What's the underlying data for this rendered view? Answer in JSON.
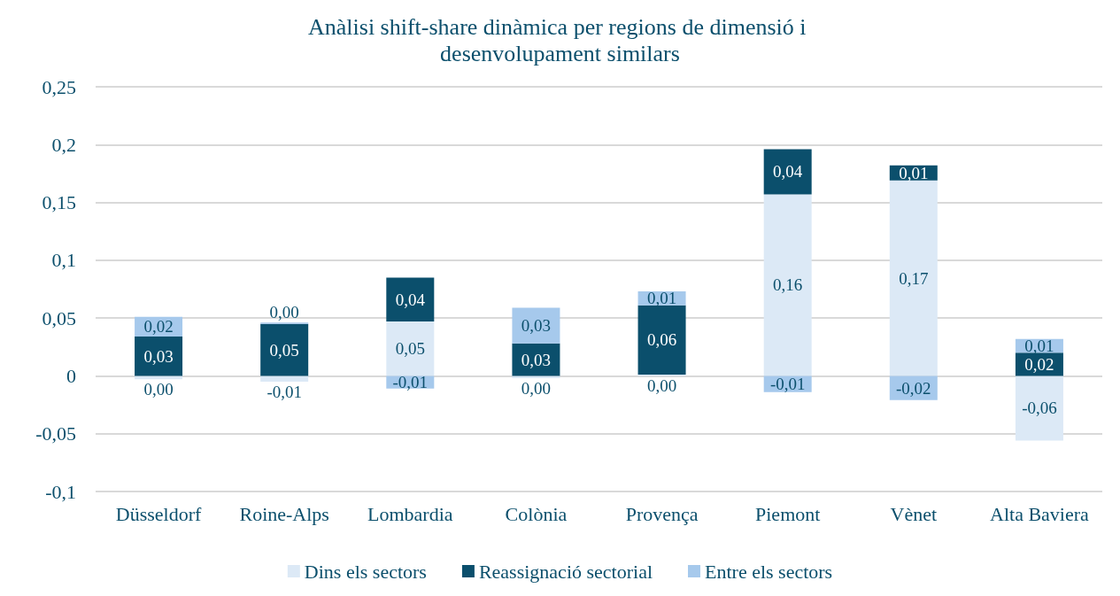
{
  "chart_data": {
    "type": "bar",
    "stacked": true,
    "title": "Anàlisi shift-share dinàmica per regions de dimensió i desenvolupament similars",
    "categories": [
      "Düsseldorf",
      "Roine-Alps",
      "Lombardia",
      "Colònia",
      "Provença",
      "Piemont",
      "Vènet",
      "Alta Baviera"
    ],
    "series": [
      {
        "name": "Dins els sectors",
        "color": "#dce9f6",
        "values": [
          -0.003,
          -0.005,
          0.047,
          -0.002,
          0.001,
          0.157,
          0.169,
          -0.056
        ],
        "value_labels": [
          "0,00",
          "-0,01",
          "0,05",
          "0,00",
          "0,00",
          "0,16",
          "0,17",
          "-0,06"
        ]
      },
      {
        "name": "Reassignació sectorial",
        "color": "#0b4f6c",
        "values": [
          0.034,
          0.045,
          0.038,
          0.028,
          0.06,
          0.039,
          0.013,
          0.02
        ],
        "value_labels": [
          "0,03",
          "0,05",
          "0,04",
          "0,03",
          "0,06",
          "0,04",
          "0,01",
          "0,02"
        ]
      },
      {
        "name": "Entre els sectors",
        "color": "#a6c9ec",
        "values": [
          0.017,
          0.001,
          -0.011,
          0.031,
          0.012,
          -0.014,
          -0.021,
          0.012
        ],
        "value_labels": [
          "0,02",
          "0,00",
          "-0,01",
          "0,03",
          "0,01",
          "-0,01",
          "-0,02",
          "0,01"
        ]
      }
    ],
    "ylim": [
      -0.1,
      0.25
    ],
    "yticks": [
      {
        "value": -0.1,
        "label": "-0,1"
      },
      {
        "value": -0.05,
        "label": "-0,05"
      },
      0,
      {
        "value": 0.05,
        "label": "0,05"
      },
      {
        "value": 0.1,
        "label": "0,1"
      },
      {
        "value": 0.15,
        "label": "0,15"
      },
      {
        "value": 0.2,
        "label": "0,2"
      },
      {
        "value": 0.25,
        "label": "0,25"
      }
    ],
    "grid": "y",
    "legend": "bottom"
  }
}
